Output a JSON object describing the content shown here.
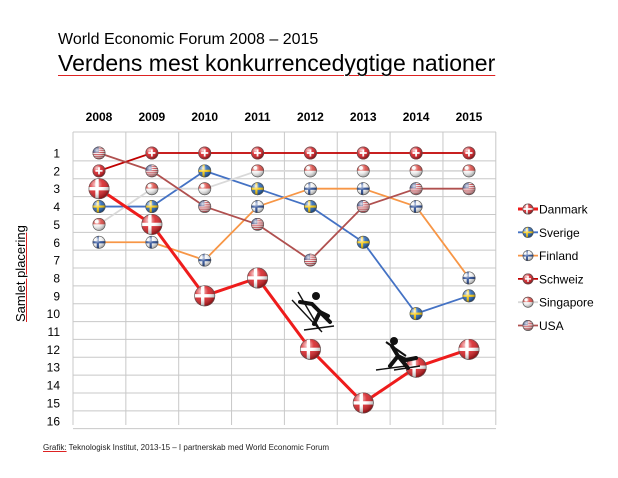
{
  "header": {
    "subtitle": "World Economic Forum 2008 – 2015",
    "title": "Verdens mest konkurrencedygtige nationer"
  },
  "footer": {
    "source_prefix": "Grafik:",
    "source_text": " Teknologisk Institut, 2013-15  – I partnerskab med World Economic Forum"
  },
  "chart_data": {
    "type": "line",
    "title": "Verdens mest konkurrencedygtige nationer",
    "xlabel": "",
    "ylabel": "Samlet placering",
    "categories": [
      "2008",
      "2009",
      "2010",
      "2011",
      "2012",
      "2013",
      "2014",
      "2015"
    ],
    "yticks": [
      "1",
      "2",
      "3",
      "4",
      "5",
      "6",
      "7",
      "8",
      "9",
      "10",
      "11",
      "12",
      "13",
      "14",
      "15",
      "16"
    ],
    "ylim": [
      1,
      16
    ],
    "y_inverted": true,
    "grid": true,
    "legend_position": "right",
    "series": [
      {
        "name": "Danmark",
        "color": "#ee1c1c",
        "values": [
          3,
          5,
          9,
          8,
          12,
          15,
          13,
          12
        ],
        "flag": "denmark"
      },
      {
        "name": "Sverige",
        "color": "#4472c4",
        "values": [
          4,
          4,
          2,
          3,
          4,
          6,
          10,
          9
        ],
        "flag": "sweden"
      },
      {
        "name": "Finland",
        "color": "#f79646",
        "values": [
          6,
          6,
          7,
          4,
          3,
          3,
          4,
          8
        ],
        "flag": "finland"
      },
      {
        "name": "Schweiz",
        "color": "#c00000",
        "values": [
          2,
          1,
          1,
          1,
          1,
          1,
          1,
          1
        ],
        "flag": "switzerland"
      },
      {
        "name": "Singapore",
        "color": "#d9d9d9",
        "values": [
          5,
          3,
          3,
          2,
          2,
          2,
          2,
          2
        ],
        "flag": "singapore"
      },
      {
        "name": "USA",
        "color": "#b0504f",
        "values": [
          1,
          2,
          4,
          5,
          7,
          4,
          3,
          3
        ],
        "flag": "usa"
      }
    ]
  }
}
